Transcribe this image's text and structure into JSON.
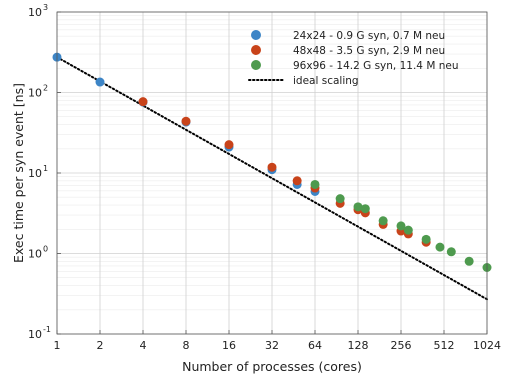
{
  "chart_data": {
    "type": "scatter",
    "title": "",
    "xlabel": "Number of processes (cores)",
    "ylabel": "Exec time per syn event [ns]",
    "x_scale": "log2",
    "y_scale": "log10",
    "xlim": [
      1,
      1024
    ],
    "ylim": [
      0.1,
      1000
    ],
    "x_ticks": [
      1,
      2,
      4,
      8,
      16,
      32,
      64,
      128,
      256,
      512,
      1024
    ],
    "x_tick_labels": [
      "1",
      "2",
      "4",
      "8",
      "16",
      "32",
      "64",
      "128",
      "256",
      "512",
      "1024"
    ],
    "y_ticks": [
      0.1,
      1,
      10,
      100,
      1000
    ],
    "y_tick_labels": [
      "10",
      "10",
      "10",
      "10",
      "10"
    ],
    "y_tick_exponents": [
      "-1",
      "0",
      "1",
      "2",
      "3"
    ],
    "grid": true,
    "legend_position": "top-right",
    "series": [
      {
        "name": "24x24 - 0.9 G syn, 0.7 M neu",
        "color": "#3d85c6",
        "marker": "circle",
        "x": [
          1,
          2,
          4,
          8,
          16,
          32,
          48,
          64
        ],
        "y": [
          275,
          135,
          76,
          43,
          21,
          11,
          7.2,
          5.9
        ]
      },
      {
        "name": "48x48 - 3.5 G syn, 2.9 M neu",
        "color": "#c8431a",
        "marker": "circle",
        "x": [
          4,
          8,
          16,
          32,
          48,
          64,
          96,
          128,
          144,
          192,
          256,
          288,
          384
        ],
        "y": [
          77,
          44,
          22.5,
          11.8,
          8.0,
          6.5,
          4.2,
          3.5,
          3.2,
          2.3,
          1.9,
          1.75,
          1.38
        ]
      },
      {
        "name": "96x96 - 14.2 G syn, 11.4 M neu",
        "color": "#4e9a4e",
        "marker": "circle",
        "x": [
          64,
          96,
          128,
          144,
          192,
          256,
          288,
          384,
          480,
          576,
          768,
          1024
        ],
        "y": [
          7.2,
          4.8,
          3.8,
          3.6,
          2.55,
          2.2,
          1.95,
          1.5,
          1.2,
          1.05,
          0.8,
          0.67
        ]
      },
      {
        "name": "ideal scaling",
        "color": "#000000",
        "marker": "none",
        "line_style": "dotted",
        "x": [
          1,
          1024
        ],
        "y": [
          275,
          0.27
        ]
      }
    ]
  }
}
